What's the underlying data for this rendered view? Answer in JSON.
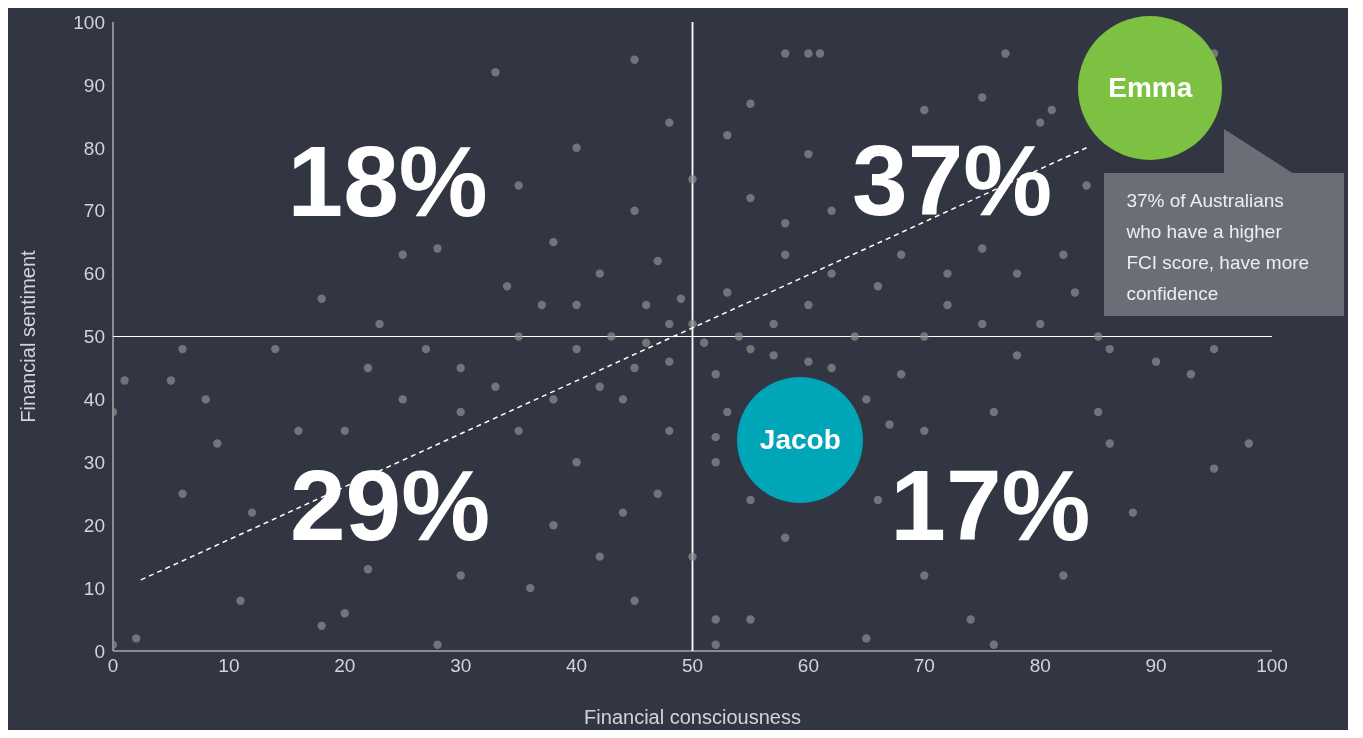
{
  "chart_data": {
    "type": "scatter",
    "xlabel": "Financial consciousness",
    "ylabel": "Financial sentiment",
    "xlim": [
      0,
      100
    ],
    "ylim": [
      0,
      100
    ],
    "xticks": [
      0,
      10,
      20,
      30,
      40,
      50,
      60,
      70,
      80,
      90,
      100
    ],
    "yticks": [
      0,
      10,
      20,
      30,
      40,
      50,
      60,
      70,
      80,
      90,
      100
    ],
    "grid": false,
    "series": [
      {
        "type": "scatter",
        "color": "#8c8c8c",
        "marker": "circle",
        "x": [
          0,
          1,
          2,
          0,
          6,
          5,
          6,
          8,
          11,
          20,
          12,
          9,
          14,
          33,
          45,
          58,
          60,
          61,
          77,
          75,
          95,
          98,
          95,
          88,
          76,
          52,
          65,
          55,
          28,
          18,
          40,
          48,
          55,
          70,
          80,
          53,
          60,
          25,
          28,
          35,
          18,
          22,
          25,
          30,
          35,
          38,
          42,
          45,
          30,
          36,
          40,
          44,
          46,
          42,
          38,
          45,
          50,
          55,
          58,
          62,
          60,
          55,
          52,
          48,
          50,
          53,
          47,
          43,
          40,
          37,
          35,
          33,
          30,
          27,
          23,
          20,
          16,
          22,
          47,
          44,
          48,
          52,
          55,
          53,
          57,
          62,
          65,
          68,
          70,
          72,
          75,
          78,
          80,
          83,
          86,
          90,
          93,
          95,
          85,
          76,
          70,
          67,
          64,
          66,
          68,
          72,
          75,
          78,
          82,
          81,
          84,
          85,
          62,
          58,
          57,
          48,
          51,
          49,
          45,
          42,
          38,
          34,
          40,
          46,
          54,
          60,
          52,
          66,
          58,
          50,
          52,
          70,
          86,
          82,
          74
        ],
        "values": [
          38,
          43,
          2,
          1,
          48,
          43,
          25,
          40,
          8,
          6,
          22,
          33,
          48,
          92,
          94,
          95,
          95,
          95,
          95,
          88,
          95,
          33,
          29,
          22,
          1,
          1,
          2,
          5,
          1,
          4,
          80,
          84,
          87,
          86,
          84,
          82,
          79,
          63,
          64,
          74,
          56,
          45,
          40,
          45,
          35,
          20,
          15,
          8,
          12,
          10,
          30,
          40,
          55,
          60,
          65,
          70,
          75,
          72,
          68,
          60,
          55,
          48,
          44,
          46,
          52,
          57,
          62,
          50,
          48,
          55,
          50,
          42,
          38,
          48,
          52,
          35,
          35,
          13,
          25,
          22,
          35,
          30,
          24,
          38,
          47,
          45,
          40,
          44,
          50,
          55,
          52,
          47,
          52,
          57,
          48,
          46,
          44,
          48,
          38,
          38,
          35,
          36,
          50,
          58,
          63,
          60,
          64,
          60,
          63,
          86,
          74,
          50,
          70,
          63,
          52,
          52,
          49,
          56,
          45,
          42,
          40,
          58,
          55,
          49,
          50,
          46,
          34,
          24,
          18,
          15,
          5,
          12,
          33,
          12,
          5
        ]
      },
      {
        "type": "line",
        "color": "#ffffff",
        "line_style": "dashed",
        "marker": "none",
        "x": [
          2.4,
          84
        ],
        "values": [
          11.3,
          80
        ]
      }
    ],
    "ref_lines": [
      {
        "axis": "x",
        "value": 50,
        "color": "#ffffff"
      },
      {
        "axis": "y",
        "value": 50,
        "color": "#ffffff"
      }
    ],
    "annotations": [
      "18%",
      "37%",
      "29%",
      "17%",
      "Emma",
      "Jacob",
      "37% of Australians who have a higher FCI score, have more confidence"
    ]
  }
}
